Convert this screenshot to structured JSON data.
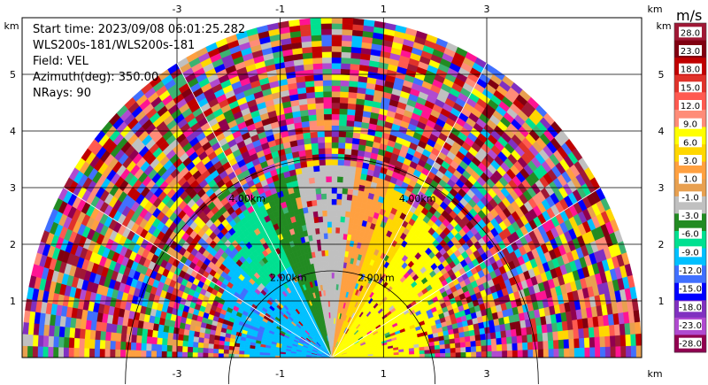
{
  "info": {
    "start_time": "Start time: 2023/09/08 06:01:25.282",
    "site": "WLS200s-181/WLS200s-181",
    "field": "Field: VEL",
    "azimuth": "Azimuth(deg): 350.00",
    "nrays": "NRays: 90"
  },
  "axes": {
    "unit": "km",
    "x_ticks": [
      "-3",
      "-1",
      "1",
      "3"
    ],
    "y_ticks": [
      "1",
      "2",
      "3",
      "4",
      "5"
    ],
    "x_range": [
      -6,
      6
    ],
    "y_range": [
      0,
      6
    ],
    "range_ring_labels": [
      "2.00km",
      "2.00km",
      "4.00km",
      "4.00km"
    ]
  },
  "colorbar": {
    "unit": "m/s",
    "labels": [
      "28.0",
      "23.0",
      "18.0",
      "15.0",
      "12.0",
      "9.0",
      "6.0",
      "3.0",
      "1.0",
      "-1.0",
      "-3.0",
      "-6.0",
      "-9.0",
      "-12.0",
      "-15.0",
      "-18.0",
      "-23.0",
      "-28.0"
    ],
    "colors": [
      "#a01835",
      "#800010",
      "#c00000",
      "#e0322a",
      "#ff5a50",
      "#ff8c78",
      "#ffff00",
      "#ffd700",
      "#ffa040",
      "#e8a050",
      "#c0c0c0",
      "#228b22",
      "#00e090",
      "#00c0ff",
      "#4070ff",
      "#0000ff",
      "#8030c0",
      "#b04ad0",
      "#900050"
    ]
  },
  "sector": {
    "field": "radial velocity",
    "near_range_pattern": "approaching on left (cyan/blue), receding on right (yellow/orange), grey zero-velocity band near azimuth 0"
  }
}
